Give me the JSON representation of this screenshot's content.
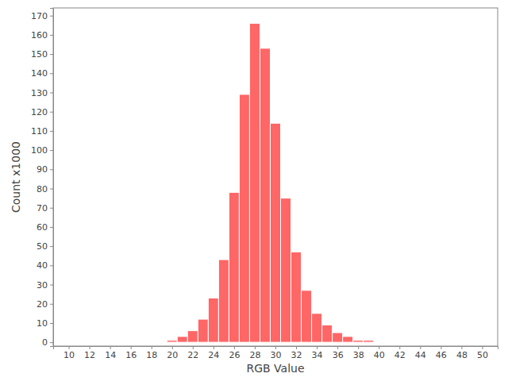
{
  "chart_data": {
    "type": "histogram",
    "x_label": "RGB Value",
    "y_label": "Count x1000",
    "bins": [
      19.5,
      20.5,
      21.5,
      22.5,
      23.5,
      24.5,
      25.5,
      26.5,
      27.5,
      28.5,
      29.5,
      30.5,
      31.5,
      32.5,
      33.5,
      34.5,
      35.5,
      36.5,
      37.5,
      38.5,
      39.5
    ],
    "values": [
      1,
      3,
      6,
      12,
      23,
      43,
      78,
      129,
      166,
      153,
      114,
      75,
      47,
      27,
      15,
      9,
      5,
      3,
      1,
      1
    ],
    "color": "#ff6666",
    "xlim": [
      8.5,
      51.5
    ],
    "xticks": [
      10,
      12,
      14,
      16,
      18,
      20,
      22,
      24,
      26,
      28,
      30,
      32,
      34,
      36,
      38,
      40,
      42,
      44,
      46,
      48,
      50
    ],
    "ylim": [
      -2,
      174
    ],
    "yticks": [
      0,
      10,
      20,
      30,
      40,
      50,
      60,
      70,
      80,
      90,
      100,
      110,
      120,
      130,
      140,
      150,
      160,
      170
    ],
    "grid": false
  }
}
